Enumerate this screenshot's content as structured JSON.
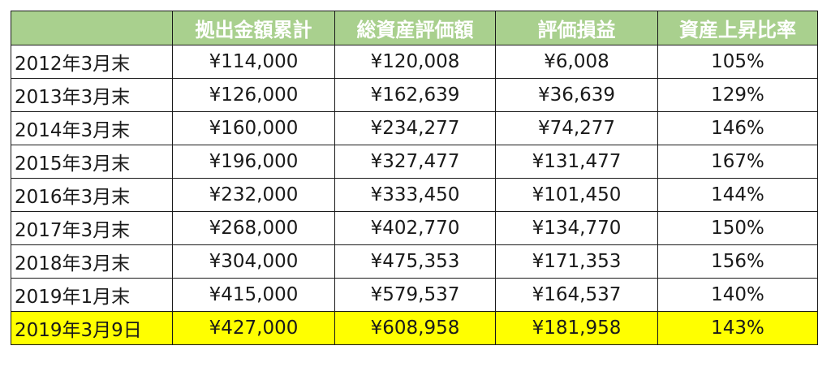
{
  "table": {
    "columns": [
      "",
      "拠出金額累計",
      "総資産評価額",
      "評価損益",
      "資産上昇比率"
    ],
    "rows": [
      [
        "2012年3月末",
        "¥114,000",
        "¥120,008",
        "¥6,008",
        "105%"
      ],
      [
        "2013年3月末",
        "¥126,000",
        "¥162,639",
        "¥36,639",
        "129%"
      ],
      [
        "2014年3月末",
        "¥160,000",
        "¥234,277",
        "¥74,277",
        "146%"
      ],
      [
        "2015年3月末",
        "¥196,000",
        "¥327,477",
        "¥131,477",
        "167%"
      ],
      [
        "2016年3月末",
        "¥232,000",
        "¥333,450",
        "¥101,450",
        "144%"
      ],
      [
        "2017年3月末",
        "¥268,000",
        "¥402,770",
        "¥134,770",
        "150%"
      ],
      [
        "2018年3月末",
        "¥304,000",
        "¥475,353",
        "¥171,353",
        "156%"
      ],
      [
        "2019年1月末",
        "¥415,000",
        "¥579,537",
        "¥164,537",
        "140%"
      ],
      [
        "2019年3月9日",
        "¥427,000",
        "¥608,958",
        "¥181,958",
        "143%"
      ]
    ],
    "highlighted_row": 8
  },
  "colors": {
    "header_bg": "#a9d08e",
    "header_text": "#ffffff",
    "highlight_bg": "#ffff00",
    "border": "#1a1a1a"
  }
}
